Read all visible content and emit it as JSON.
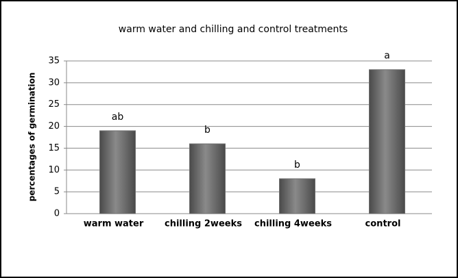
{
  "chart_data": {
    "type": "bar",
    "title": "warm water and chilling and control treatments",
    "y_label": "percentages of germination",
    "categories": [
      "warm water",
      "chilling 2weeks",
      "chilling 4weeks",
      "control"
    ],
    "values": [
      19,
      16,
      8,
      33
    ],
    "annotations": [
      "ab",
      "b",
      "b",
      "a"
    ],
    "color": "#6e6e6e",
    "ylim": [
      0,
      35
    ],
    "yticks": [
      0,
      5,
      10,
      15,
      20,
      25,
      30,
      35
    ],
    "grid": true
  }
}
